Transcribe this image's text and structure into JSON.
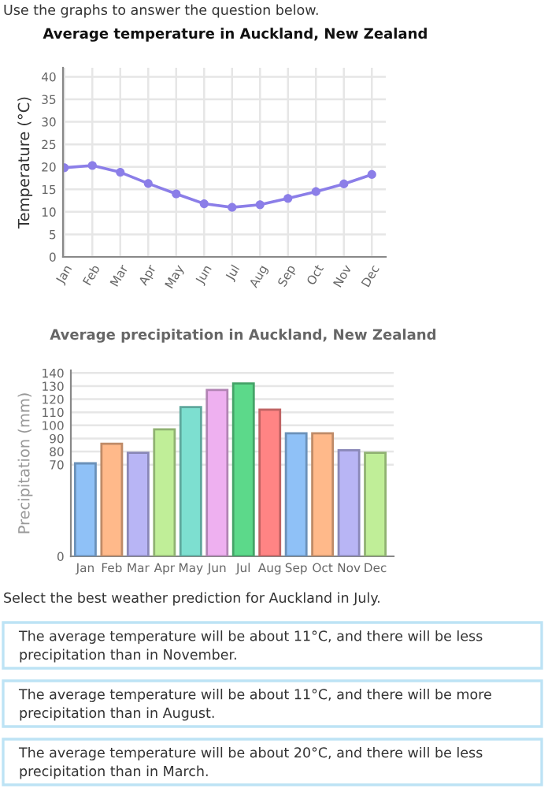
{
  "chart_data": [
    {
      "type": "line",
      "title": "Average temperature in Auckland, New Zealand",
      "ylabel": "Temperature (°C)",
      "categories": [
        "Jan",
        "Feb",
        "Mar",
        "Apr",
        "May",
        "Jun",
        "Jul",
        "Aug",
        "Sep",
        "Oct",
        "Nov",
        "Dec"
      ],
      "series": [
        {
          "color": "#8b7ee8",
          "values": [
            19.8,
            20.3,
            18.8,
            16.3,
            14.0,
            11.8,
            11.0,
            11.6,
            13.0,
            14.5,
            16.2,
            18.3
          ]
        }
      ],
      "ylim": [
        0,
        42
      ],
      "yticks": [
        0,
        5,
        10,
        15,
        20,
        25,
        30,
        35,
        40
      ],
      "grid": true,
      "marker": "circle",
      "line_style": "solid",
      "annotations": [
        "Use the graphs to answer the question below."
      ]
    },
    {
      "type": "bar",
      "title": "Average precipitation in Auckland, New Zealand",
      "ylabel": "Precipitation (mm)",
      "categories": [
        "Jan",
        "Feb",
        "Mar",
        "Apr",
        "May",
        "Jun",
        "Jul",
        "Aug",
        "Sep",
        "Oct",
        "Nov",
        "Dec"
      ],
      "values": [
        71,
        86,
        79,
        97,
        114,
        127,
        132,
        112,
        94,
        94,
        81,
        79
      ],
      "colors": [
        "#8fc1f7",
        "#ffb98a",
        "#b8b5f5",
        "#c0ee98",
        "#7ddfd0",
        "#eeb0f0",
        "#5cd98a",
        "#ff8484",
        "#8fc1f7",
        "#ffb98a",
        "#b8b5f5",
        "#c0ee98"
      ],
      "ylim": [
        0,
        142
      ],
      "yticks": [
        0,
        70,
        80,
        90,
        100,
        110,
        120,
        130,
        140
      ],
      "grid": "y",
      "annotations": [
        "Select the best weather prediction for Auckland in July.",
        "The average temperature will be about 11°C, and there will be less precipitation than in November.",
        "The average temperature will be about 11°C, and there will be more precipitation than in August.",
        "The average temperature will be about 20°C, and there will be less precipitation than in March."
      ]
    }
  ]
}
